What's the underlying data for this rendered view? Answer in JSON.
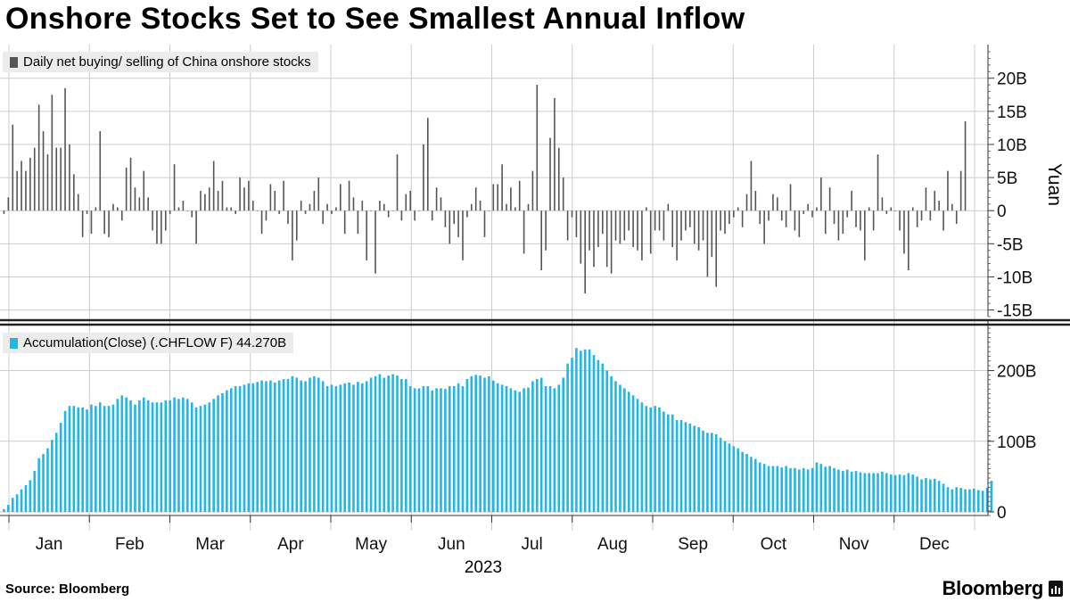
{
  "title": "Onshore Stocks Set to See Smallest Annual Inflow",
  "source": "Source:  Bloomberg",
  "brand": "Bloomberg",
  "colors": {
    "daily": "#555555",
    "accum": "#1fb6e8",
    "grid": "#cccccc",
    "legend_bg": "#ececec"
  },
  "chart_data": [
    {
      "type": "bar",
      "title": "Daily net buying/ selling of China onshore stocks",
      "legend": "Daily net buying/ selling of China onshore stocks",
      "ylabel": "Yuan",
      "ylim": [
        -16,
        24
      ],
      "yticks": [
        20,
        15,
        10,
        5,
        0,
        -5,
        -10,
        -15
      ],
      "ytick_labels": [
        "20B",
        "15B",
        "10B",
        "5B",
        "0",
        "-5B",
        "-10B",
        "-15B"
      ],
      "values": [
        -0.5,
        2,
        13,
        6,
        7.5,
        6,
        8,
        9.5,
        16,
        12,
        8.5,
        17.5,
        9.5,
        9.5,
        18.5,
        10,
        5.5,
        2.5,
        -4,
        -0.5,
        -3.5,
        0.5,
        12,
        -3.5,
        -4,
        1,
        0.5,
        -1.5,
        6.5,
        8,
        3.5,
        2,
        6,
        2,
        -3,
        -5,
        -5,
        -3,
        -0.5,
        7,
        0.5,
        1.5,
        0,
        -1,
        -5,
        3,
        2.5,
        3.5,
        7.5,
        3,
        4.5,
        0.5,
        0.5,
        -0.5,
        5,
        3.5,
        4.5,
        1.5,
        0,
        -3.5,
        -1.5,
        4,
        3,
        -0.5,
        4.5,
        -2,
        -7.5,
        -4.5,
        1.5,
        -0.5,
        1,
        3,
        5,
        -2,
        1,
        -0.5,
        0.5,
        4,
        -3.5,
        4.5,
        2,
        -3.5,
        1.5,
        -7.5,
        0,
        -9.5,
        1.5,
        1,
        -1,
        0,
        8.5,
        -1.5,
        2.5,
        3,
        -1.5,
        0,
        10,
        14,
        -1.5,
        3.5,
        2,
        -2.5,
        -5,
        -2,
        -4,
        -7.5,
        -1,
        1,
        3.5,
        1.5,
        -4,
        0,
        4,
        4,
        7,
        1,
        3.5,
        0.5,
        4.5,
        -6.5,
        1,
        6,
        19,
        -9,
        -6,
        11,
        17,
        9.5,
        5,
        -4.5,
        -1,
        -4,
        -8,
        -12.5,
        -6,
        -8.5,
        -5.5,
        -3.5,
        -8.5,
        -9.5,
        -4.5,
        -5,
        -4.5,
        -3,
        -5.5,
        -6,
        -7.5,
        0.5,
        -6.5,
        -3,
        -3,
        -4.5,
        1,
        -5.5,
        -7.5,
        -4.5,
        -3,
        -2.5,
        -5,
        -6,
        -4.5,
        -10,
        -7,
        -11.5,
        -3,
        -3.5,
        -2,
        -1,
        0.5,
        -2.5,
        2.5,
        7.5,
        3,
        -2,
        -5,
        -1.5,
        2.5,
        2,
        -1.5,
        -2.5,
        4,
        -3,
        -4,
        -0.5,
        1,
        -1,
        0.5,
        5,
        -3.5,
        3.5,
        -2,
        -4.5,
        -3.5,
        -1,
        3,
        -2.5,
        -3,
        -7.5,
        0.5,
        -3,
        8.5,
        2,
        -0.5,
        0.5,
        0,
        -3,
        -6.5,
        -9,
        0.5,
        -2.5,
        -1.5,
        3.5,
        -1.5,
        3,
        1.5,
        -3,
        6,
        1,
        -2,
        6,
        13.5
      ],
      "totals_label": ""
    },
    {
      "type": "bar",
      "title": "Accumulation(Close) (.CHFLOW F) 44.270B",
      "legend": "Accumulation(Close) (.CHFLOW F) 44.270B",
      "ylim": [
        -5,
        260
      ],
      "yticks": [
        200,
        100,
        0
      ],
      "ytick_labels": [
        "200B",
        "100B",
        "0"
      ],
      "values": [
        4,
        10,
        20,
        25,
        32,
        38,
        45,
        58,
        76,
        82,
        90,
        102,
        112,
        126,
        143,
        150,
        150,
        148,
        148,
        145,
        152,
        150,
        155,
        150,
        150,
        152,
        160,
        165,
        162,
        158,
        152,
        158,
        162,
        158,
        155,
        155,
        155,
        158,
        158,
        162,
        160,
        162,
        160,
        155,
        148,
        150,
        152,
        155,
        160,
        165,
        168,
        172,
        175,
        178,
        178,
        180,
        182,
        182,
        184,
        186,
        185,
        186,
        183,
        186,
        188,
        188,
        192,
        190,
        186,
        185,
        190,
        192,
        190,
        185,
        178,
        180,
        178,
        180,
        182,
        183,
        180,
        184,
        182,
        185,
        190,
        192,
        195,
        190,
        193,
        195,
        193,
        188,
        188,
        178,
        175,
        175,
        178,
        178,
        172,
        175,
        175,
        174,
        178,
        178,
        182,
        178,
        188,
        192,
        194,
        193,
        190,
        192,
        186,
        182,
        180,
        178,
        175,
        172,
        170,
        175,
        176,
        185,
        188,
        190,
        178,
        178,
        175,
        180,
        190,
        210,
        218,
        232,
        228,
        230,
        230,
        222,
        215,
        210,
        200,
        192,
        185,
        180,
        175,
        170,
        165,
        160,
        155,
        150,
        148,
        150,
        148,
        142,
        138,
        138,
        130,
        130,
        127,
        125,
        122,
        120,
        115,
        112,
        112,
        110,
        105,
        100,
        97,
        93,
        90,
        85,
        82,
        78,
        75,
        70,
        68,
        65,
        65,
        65,
        63,
        65,
        62,
        62,
        60,
        62,
        60,
        62,
        70,
        68,
        64,
        65,
        62,
        60,
        58,
        60,
        57,
        58,
        56,
        55,
        55,
        55,
        55,
        57,
        55,
        53,
        52,
        53,
        52,
        55,
        53,
        50,
        46,
        48,
        46,
        47,
        44,
        40,
        35,
        32,
        35,
        34,
        32,
        32,
        33,
        31,
        30,
        34,
        44.27
      ]
    }
  ],
  "x_axis": {
    "months": [
      "Jan",
      "Feb",
      "Mar",
      "Apr",
      "May",
      "Jun",
      "Jul",
      "Aug",
      "Sep",
      "Oct",
      "Nov",
      "Dec"
    ],
    "year": "2023"
  }
}
